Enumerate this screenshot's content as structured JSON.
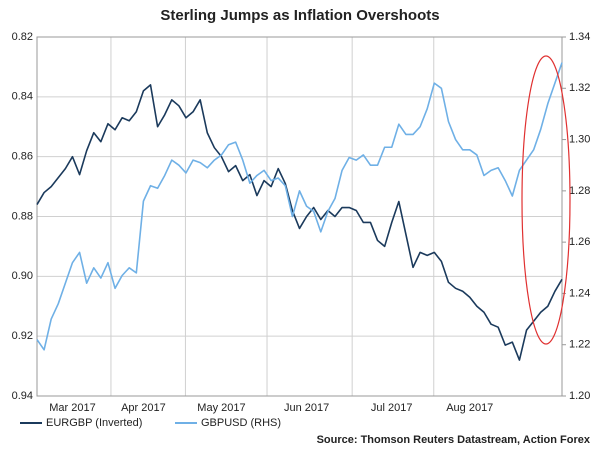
{
  "chart_data": {
    "type": "line",
    "title": "Sterling Jumps as Inflation Overshoots",
    "source": "Source: Thomson Reuters Datastream, Action Forex",
    "xlim": [
      0,
      74
    ],
    "xticks": [
      {
        "value": 5,
        "label": "Mar 2017"
      },
      {
        "value": 15,
        "label": "Apr 2017"
      },
      {
        "value": 26,
        "label": "May 2017"
      },
      {
        "value": 38,
        "label": "Jun 2017"
      },
      {
        "value": 50,
        "label": "Jul 2017"
      },
      {
        "value": 61,
        "label": "Aug 2017"
      }
    ],
    "ylim": [
      0.82,
      0.94
    ],
    "y_inverted": true,
    "yticks": [
      0.82,
      0.84,
      0.86,
      0.88,
      {
        "value": 0.9,
        "label": "0.90"
      },
      0.92,
      0.94
    ],
    "y2lim": [
      1.2,
      1.34
    ],
    "y2ticks": [
      {
        "value": 1.2,
        "label": "1.20"
      },
      1.22,
      1.24,
      1.26,
      1.28,
      {
        "value": 1.3,
        "label": "1.30"
      },
      1.32,
      1.34
    ],
    "grid": true,
    "series": [
      {
        "name": "EURGBP (Inverted)",
        "color": "#1b3a5c",
        "values": [
          0.876,
          0.872,
          0.87,
          0.867,
          0.864,
          0.86,
          0.866,
          0.858,
          0.852,
          0.855,
          0.849,
          0.851,
          0.847,
          0.848,
          0.845,
          0.838,
          0.836,
          0.85,
          0.846,
          0.841,
          0.843,
          0.847,
          0.845,
          0.841,
          0.852,
          0.857,
          0.86,
          0.865,
          0.863,
          0.868,
          0.866,
          0.873,
          0.868,
          0.87,
          0.864,
          0.869,
          0.878,
          0.884,
          0.88,
          0.877,
          0.881,
          0.878,
          0.88,
          0.877,
          0.877,
          0.878,
          0.882,
          0.882,
          0.888,
          0.89,
          0.882,
          0.875,
          0.886,
          0.897,
          0.892,
          0.893,
          0.892,
          0.895,
          0.902,
          0.904,
          0.905,
          0.907,
          0.91,
          0.912,
          0.916,
          0.917,
          0.923,
          0.922,
          0.928,
          0.918,
          0.915,
          0.912,
          0.91,
          0.905,
          0.901
        ]
      },
      {
        "name": "GBPUSD (RHS)",
        "color": "#6fb0e6",
        "axis": "y2",
        "values": [
          1.222,
          1.218,
          1.23,
          1.236,
          1.244,
          1.252,
          1.256,
          1.244,
          1.25,
          1.246,
          1.252,
          1.242,
          1.247,
          1.25,
          1.248,
          1.276,
          1.282,
          1.281,
          1.286,
          1.292,
          1.29,
          1.287,
          1.292,
          1.291,
          1.289,
          1.292,
          1.294,
          1.298,
          1.299,
          1.292,
          1.283,
          1.286,
          1.288,
          1.284,
          1.285,
          1.282,
          1.27,
          1.28,
          1.274,
          1.272,
          1.264,
          1.272,
          1.277,
          1.288,
          1.293,
          1.292,
          1.294,
          1.29,
          1.29,
          1.297,
          1.297,
          1.306,
          1.302,
          1.302,
          1.305,
          1.312,
          1.322,
          1.32,
          1.307,
          1.3,
          1.296,
          1.296,
          1.294,
          1.286,
          1.288,
          1.289,
          1.284,
          1.278,
          1.288,
          1.292,
          1.296,
          1.304,
          1.314,
          1.322,
          1.33
        ]
      }
    ]
  }
}
